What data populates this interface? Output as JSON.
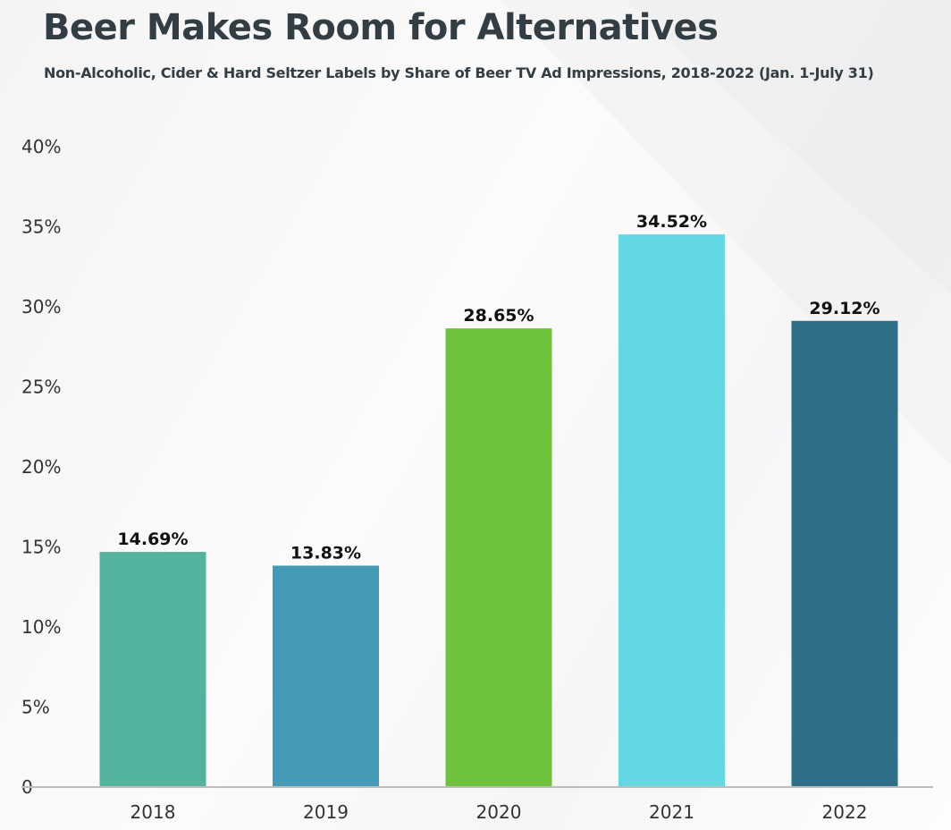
{
  "chart_data": {
    "type": "bar",
    "title": "Beer Makes Room for Alternatives",
    "subtitle": "Non-Alcoholic, Cider & Hard Seltzer Labels by Share of Beer TV Ad Impressions, 2018-2022 (Jan. 1-July 31)",
    "xlabel": "",
    "ylabel": "",
    "categories": [
      "2018",
      "2019",
      "2020",
      "2021",
      "2022"
    ],
    "values": [
      14.69,
      13.83,
      28.65,
      34.52,
      29.12
    ],
    "value_labels": [
      "14.69%",
      "13.83%",
      "28.65%",
      "34.52%",
      "29.12%"
    ],
    "bar_colors": [
      "#53b39e",
      "#459bb6",
      "#6fc23c",
      "#63d8e2",
      "#2f6f88"
    ],
    "ylim": [
      0,
      40
    ],
    "yticks": [
      {
        "value": 0,
        "label": "0"
      },
      {
        "value": 5,
        "label": "5%"
      },
      {
        "value": 10,
        "label": "10%"
      },
      {
        "value": 15,
        "label": "15%"
      },
      {
        "value": 20,
        "label": "20%"
      },
      {
        "value": 25,
        "label": "25%"
      },
      {
        "value": 30,
        "label": "30%"
      },
      {
        "value": 35,
        "label": "35%"
      },
      {
        "value": 40,
        "label": "40%"
      }
    ],
    "grid": false,
    "legend": "none"
  }
}
